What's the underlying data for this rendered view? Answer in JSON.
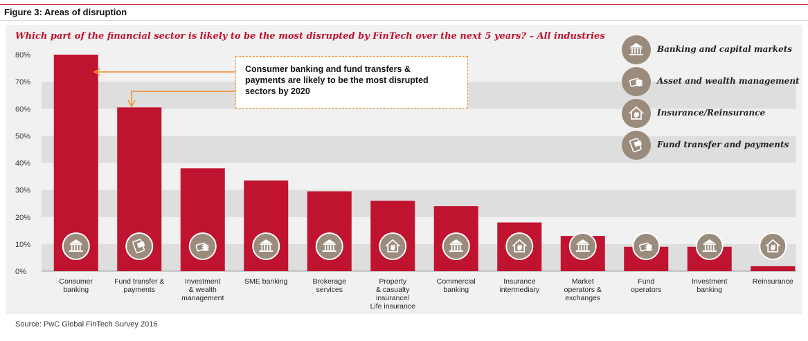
{
  "figure_title": "Figure 3: Areas of disruption",
  "question": "Which part of the financial sector is likely to be the most disrupted by FinTech over the next 5 years? – All industries",
  "source": "Source: PwC Global FinTech Survey 2016",
  "callout": "Consumer banking and fund transfers & payments are likely to be the most disrupted sectors by 2020",
  "legend": [
    {
      "label": "Banking and capital markets",
      "icon": "bank-icon"
    },
    {
      "label": "Asset and wealth management",
      "icon": "coins-icon"
    },
    {
      "label": "Insurance/Reinsurance",
      "icon": "house-fire-icon"
    },
    {
      "label": "Fund transfer and payments",
      "icon": "card-payment-icon"
    }
  ],
  "colors": {
    "bar": "#c0132f",
    "icon": "#9b8b7c",
    "callout_border": "#f08a2c",
    "accent": "#c0132f"
  },
  "chart_data": {
    "type": "bar",
    "title": "Which part of the financial sector is likely to be the most disrupted by FinTech over the next 5 years? – All industries",
    "xlabel": "",
    "ylabel": "",
    "ylim": [
      0,
      80
    ],
    "yticks": [
      "0%",
      "10%",
      "20%",
      "30%",
      "40%",
      "50%",
      "60%",
      "70%",
      "80%"
    ],
    "grid": "alternating horizontal bands",
    "legend_position": "top-right",
    "categories": [
      [
        "Consumer",
        "banking"
      ],
      [
        "Fund transfer &",
        "payments"
      ],
      [
        "Investment",
        "& wealth",
        "management"
      ],
      [
        "SME banking"
      ],
      [
        "Brokerage",
        "services"
      ],
      [
        "Property",
        "& casualty",
        "insurance/",
        "Life insurance"
      ],
      [
        "Commercial",
        "banking"
      ],
      [
        "Insurance",
        "intermediary"
      ],
      [
        "Market",
        "operators &",
        "exchanges"
      ],
      [
        "Fund",
        "operators"
      ],
      [
        "Investment",
        "banking"
      ],
      [
        "Reinsurance"
      ]
    ],
    "values": [
      80,
      60.5,
      38,
      33.5,
      29.5,
      26,
      24,
      18,
      13,
      9,
      9,
      1.8
    ],
    "bar_icons": [
      "bank-icon",
      "card-payment-icon",
      "coins-icon",
      "bank-icon",
      "bank-icon",
      "house-fire-icon",
      "bank-icon",
      "house-fire-icon",
      "bank-icon",
      "coins-icon",
      "bank-icon",
      "house-fire-icon"
    ]
  }
}
